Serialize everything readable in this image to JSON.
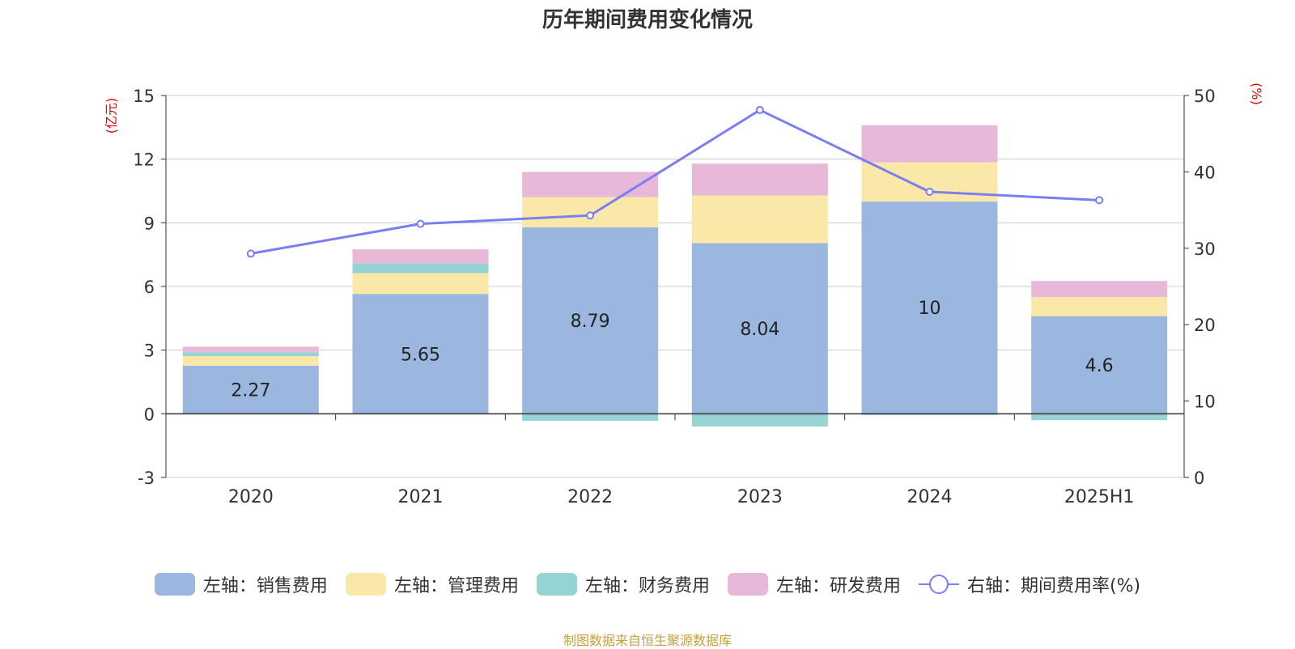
{
  "chart_data": {
    "type": "bar",
    "title": "历年期间费用变化情况",
    "categories": [
      "2020",
      "2021",
      "2022",
      "2023",
      "2024",
      "2025H1"
    ],
    "left_axis": {
      "label": "(亿元)",
      "ticks": [
        -3,
        0,
        3,
        6,
        9,
        12,
        15
      ],
      "range": [
        -3,
        15
      ]
    },
    "right_axis": {
      "label": "(%)",
      "ticks": [
        0,
        10,
        20,
        30,
        40,
        50
      ],
      "range": [
        0,
        50
      ]
    },
    "series": [
      {
        "name": "左轴：销售费用",
        "type": "bar",
        "axis": "left",
        "color": "#9bb7e0",
        "values": [
          2.27,
          5.65,
          8.79,
          8.04,
          10,
          4.6
        ],
        "labels": [
          "2.27",
          "5.65",
          "8.79",
          "8.04",
          "10",
          "4.6"
        ]
      },
      {
        "name": "左轴：管理费用",
        "type": "bar",
        "axis": "left",
        "color": "#f9e8a8",
        "values": [
          0.45,
          0.98,
          1.42,
          2.25,
          1.85,
          0.9
        ]
      },
      {
        "name": "左轴：财务费用",
        "type": "bar",
        "axis": "left",
        "color": "#95d3d4",
        "values": [
          0.18,
          0.45,
          -0.33,
          -0.6,
          -0.06,
          -0.3
        ]
      },
      {
        "name": "左轴：研发费用",
        "type": "bar",
        "axis": "left",
        "color": "#e8b8d8",
        "values": [
          0.26,
          0.67,
          1.19,
          1.5,
          1.75,
          0.76
        ]
      },
      {
        "name": "右轴：期间费用率(%)",
        "type": "line",
        "axis": "right",
        "color": "#7b7ef0",
        "values": [
          29.3,
          33.2,
          34.3,
          48.1,
          37.4,
          36.3
        ]
      }
    ],
    "legend_position": "bottom",
    "grid": true
  },
  "source": "制图数据来自恒生聚源数据库"
}
